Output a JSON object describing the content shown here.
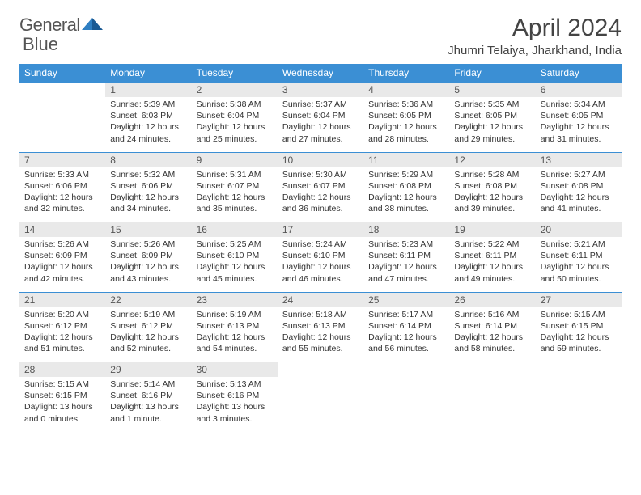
{
  "logo": {
    "word1": "General",
    "word2": "Blue"
  },
  "title": "April 2024",
  "location": "Jhumri Telaiya, Jharkhand, India",
  "colors": {
    "header_bg": "#3b8fd4",
    "header_text": "#ffffff",
    "daynum_bg": "#e9e9e9",
    "rule": "#3b8fd4",
    "logo_gray": "#6b6b6b",
    "logo_blue": "#2f7fc2"
  },
  "weekdays": [
    "Sunday",
    "Monday",
    "Tuesday",
    "Wednesday",
    "Thursday",
    "Friday",
    "Saturday"
  ],
  "weeks": [
    {
      "nums": [
        "",
        "1",
        "2",
        "3",
        "4",
        "5",
        "6"
      ],
      "cells": [
        null,
        {
          "sunrise": "5:39 AM",
          "sunset": "6:03 PM",
          "daylight": "12 hours and 24 minutes."
        },
        {
          "sunrise": "5:38 AM",
          "sunset": "6:04 PM",
          "daylight": "12 hours and 25 minutes."
        },
        {
          "sunrise": "5:37 AM",
          "sunset": "6:04 PM",
          "daylight": "12 hours and 27 minutes."
        },
        {
          "sunrise": "5:36 AM",
          "sunset": "6:05 PM",
          "daylight": "12 hours and 28 minutes."
        },
        {
          "sunrise": "5:35 AM",
          "sunset": "6:05 PM",
          "daylight": "12 hours and 29 minutes."
        },
        {
          "sunrise": "5:34 AM",
          "sunset": "6:05 PM",
          "daylight": "12 hours and 31 minutes."
        }
      ]
    },
    {
      "nums": [
        "7",
        "8",
        "9",
        "10",
        "11",
        "12",
        "13"
      ],
      "cells": [
        {
          "sunrise": "5:33 AM",
          "sunset": "6:06 PM",
          "daylight": "12 hours and 32 minutes."
        },
        {
          "sunrise": "5:32 AM",
          "sunset": "6:06 PM",
          "daylight": "12 hours and 34 minutes."
        },
        {
          "sunrise": "5:31 AM",
          "sunset": "6:07 PM",
          "daylight": "12 hours and 35 minutes."
        },
        {
          "sunrise": "5:30 AM",
          "sunset": "6:07 PM",
          "daylight": "12 hours and 36 minutes."
        },
        {
          "sunrise": "5:29 AM",
          "sunset": "6:08 PM",
          "daylight": "12 hours and 38 minutes."
        },
        {
          "sunrise": "5:28 AM",
          "sunset": "6:08 PM",
          "daylight": "12 hours and 39 minutes."
        },
        {
          "sunrise": "5:27 AM",
          "sunset": "6:08 PM",
          "daylight": "12 hours and 41 minutes."
        }
      ]
    },
    {
      "nums": [
        "14",
        "15",
        "16",
        "17",
        "18",
        "19",
        "20"
      ],
      "cells": [
        {
          "sunrise": "5:26 AM",
          "sunset": "6:09 PM",
          "daylight": "12 hours and 42 minutes."
        },
        {
          "sunrise": "5:26 AM",
          "sunset": "6:09 PM",
          "daylight": "12 hours and 43 minutes."
        },
        {
          "sunrise": "5:25 AM",
          "sunset": "6:10 PM",
          "daylight": "12 hours and 45 minutes."
        },
        {
          "sunrise": "5:24 AM",
          "sunset": "6:10 PM",
          "daylight": "12 hours and 46 minutes."
        },
        {
          "sunrise": "5:23 AM",
          "sunset": "6:11 PM",
          "daylight": "12 hours and 47 minutes."
        },
        {
          "sunrise": "5:22 AM",
          "sunset": "6:11 PM",
          "daylight": "12 hours and 49 minutes."
        },
        {
          "sunrise": "5:21 AM",
          "sunset": "6:11 PM",
          "daylight": "12 hours and 50 minutes."
        }
      ]
    },
    {
      "nums": [
        "21",
        "22",
        "23",
        "24",
        "25",
        "26",
        "27"
      ],
      "cells": [
        {
          "sunrise": "5:20 AM",
          "sunset": "6:12 PM",
          "daylight": "12 hours and 51 minutes."
        },
        {
          "sunrise": "5:19 AM",
          "sunset": "6:12 PM",
          "daylight": "12 hours and 52 minutes."
        },
        {
          "sunrise": "5:19 AM",
          "sunset": "6:13 PM",
          "daylight": "12 hours and 54 minutes."
        },
        {
          "sunrise": "5:18 AM",
          "sunset": "6:13 PM",
          "daylight": "12 hours and 55 minutes."
        },
        {
          "sunrise": "5:17 AM",
          "sunset": "6:14 PM",
          "daylight": "12 hours and 56 minutes."
        },
        {
          "sunrise": "5:16 AM",
          "sunset": "6:14 PM",
          "daylight": "12 hours and 58 minutes."
        },
        {
          "sunrise": "5:15 AM",
          "sunset": "6:15 PM",
          "daylight": "12 hours and 59 minutes."
        }
      ]
    },
    {
      "nums": [
        "28",
        "29",
        "30",
        "",
        "",
        "",
        ""
      ],
      "cells": [
        {
          "sunrise": "5:15 AM",
          "sunset": "6:15 PM",
          "daylight": "13 hours and 0 minutes."
        },
        {
          "sunrise": "5:14 AM",
          "sunset": "6:16 PM",
          "daylight": "13 hours and 1 minute."
        },
        {
          "sunrise": "5:13 AM",
          "sunset": "6:16 PM",
          "daylight": "13 hours and 3 minutes."
        },
        null,
        null,
        null,
        null
      ]
    }
  ]
}
